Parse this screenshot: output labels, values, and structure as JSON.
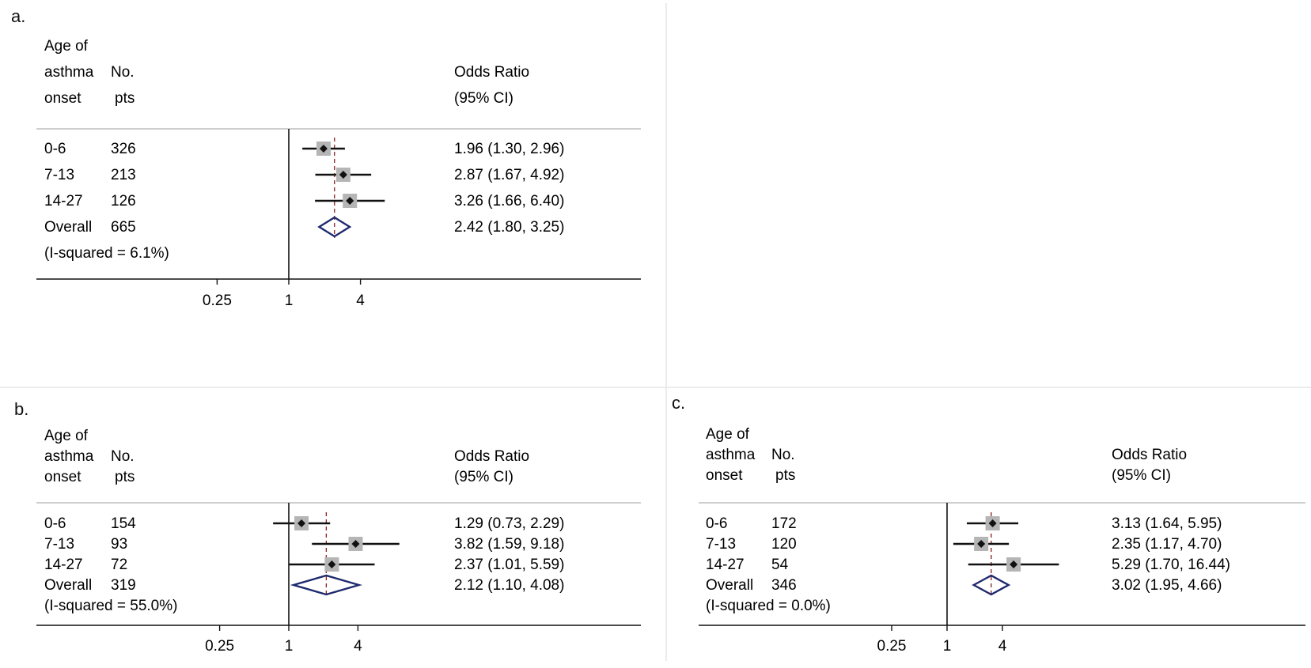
{
  "chart_data": [
    {
      "type": "forest",
      "panel_label": "a.",
      "header": {
        "col1": [
          "Age of",
          "asthma",
          "onset"
        ],
        "col2": [
          "No.",
          "pts"
        ],
        "col3": [
          "Odds Ratio",
          "(95% CI)"
        ]
      },
      "rows": [
        {
          "label": "0-6",
          "n": "326",
          "or": 1.96,
          "lo": 1.3,
          "hi": 2.96,
          "text": "1.96 (1.30, 2.96)"
        },
        {
          "label": "7-13",
          "n": "213",
          "or": 2.87,
          "lo": 1.67,
          "hi": 4.92,
          "text": "2.87 (1.67, 4.92)"
        },
        {
          "label": "14-27",
          "n": "126",
          "or": 3.26,
          "lo": 1.66,
          "hi": 6.4,
          "text": "3.26 (1.66, 6.40)"
        }
      ],
      "overall": {
        "label": "Overall",
        "n": "665",
        "or": 2.42,
        "lo": 1.8,
        "hi": 3.25,
        "text": "2.42 (1.80, 3.25)"
      },
      "heterogeneity": "(I-squared = 6.1%)",
      "x_ticks": [
        {
          "value": 0.25,
          "label": "0.25"
        },
        {
          "value": 1,
          "label": "1"
        },
        {
          "value": 4,
          "label": "4"
        }
      ],
      "x_scale": "log",
      "colors": {
        "line": "#111111",
        "box": "#b5b5b5",
        "diamond": "#1f2a6e",
        "ref": "#8b1a1a",
        "separator": "#bdbdbd"
      }
    },
    {
      "type": "forest",
      "panel_label": "b.",
      "header": {
        "col1": [
          "Age of",
          "asthma",
          "onset"
        ],
        "col2": [
          "No.",
          "pts"
        ],
        "col3": [
          "Odds Ratio",
          "(95% CI)"
        ]
      },
      "rows": [
        {
          "label": "0-6",
          "n": "154",
          "or": 1.29,
          "lo": 0.73,
          "hi": 2.29,
          "text": "1.29 (0.73, 2.29)"
        },
        {
          "label": "7-13",
          "n": "93",
          "or": 3.82,
          "lo": 1.59,
          "hi": 9.18,
          "text": "3.82 (1.59, 9.18)"
        },
        {
          "label": "14-27",
          "n": "72",
          "or": 2.37,
          "lo": 1.01,
          "hi": 5.59,
          "text": "2.37 (1.01, 5.59)"
        }
      ],
      "overall": {
        "label": "Overall",
        "n": "319",
        "or": 2.12,
        "lo": 1.1,
        "hi": 4.08,
        "text": "2.12 (1.10, 4.08)"
      },
      "heterogeneity": "(I-squared = 55.0%)",
      "x_ticks": [
        {
          "value": 0.25,
          "label": "0.25"
        },
        {
          "value": 1,
          "label": "1"
        },
        {
          "value": 4,
          "label": "4"
        }
      ],
      "x_scale": "log",
      "colors": {
        "line": "#111111",
        "box": "#b5b5b5",
        "diamond": "#1f2a6e",
        "ref": "#8b1a1a",
        "separator": "#bdbdbd"
      }
    },
    {
      "type": "forest",
      "panel_label": "c.",
      "header": {
        "col1": [
          "Age of",
          "asthma",
          "onset"
        ],
        "col2": [
          "No.",
          "pts"
        ],
        "col3": [
          "Odds Ratio",
          "(95% CI)"
        ]
      },
      "rows": [
        {
          "label": "0-6",
          "n": "172",
          "or": 3.13,
          "lo": 1.64,
          "hi": 5.95,
          "text": "3.13 (1.64, 5.95)"
        },
        {
          "label": "7-13",
          "n": "120",
          "or": 2.35,
          "lo": 1.17,
          "hi": 4.7,
          "text": "2.35 (1.17, 4.70)"
        },
        {
          "label": "14-27",
          "n": "54",
          "or": 5.29,
          "lo": 1.7,
          "hi": 16.44,
          "text": "5.29 (1.70, 16.44)"
        }
      ],
      "overall": {
        "label": "Overall",
        "n": "346",
        "or": 3.02,
        "lo": 1.95,
        "hi": 4.66,
        "text": "3.02 (1.95, 4.66)"
      },
      "heterogeneity": "(I-squared = 0.0%)",
      "x_ticks": [
        {
          "value": 0.25,
          "label": "0.25"
        },
        {
          "value": 1,
          "label": "1"
        },
        {
          "value": 4,
          "label": "4"
        }
      ],
      "x_scale": "log",
      "colors": {
        "line": "#111111",
        "box": "#b5b5b5",
        "diamond": "#1f2a6e",
        "ref": "#8b1a1a",
        "separator": "#bdbdbd"
      }
    }
  ]
}
